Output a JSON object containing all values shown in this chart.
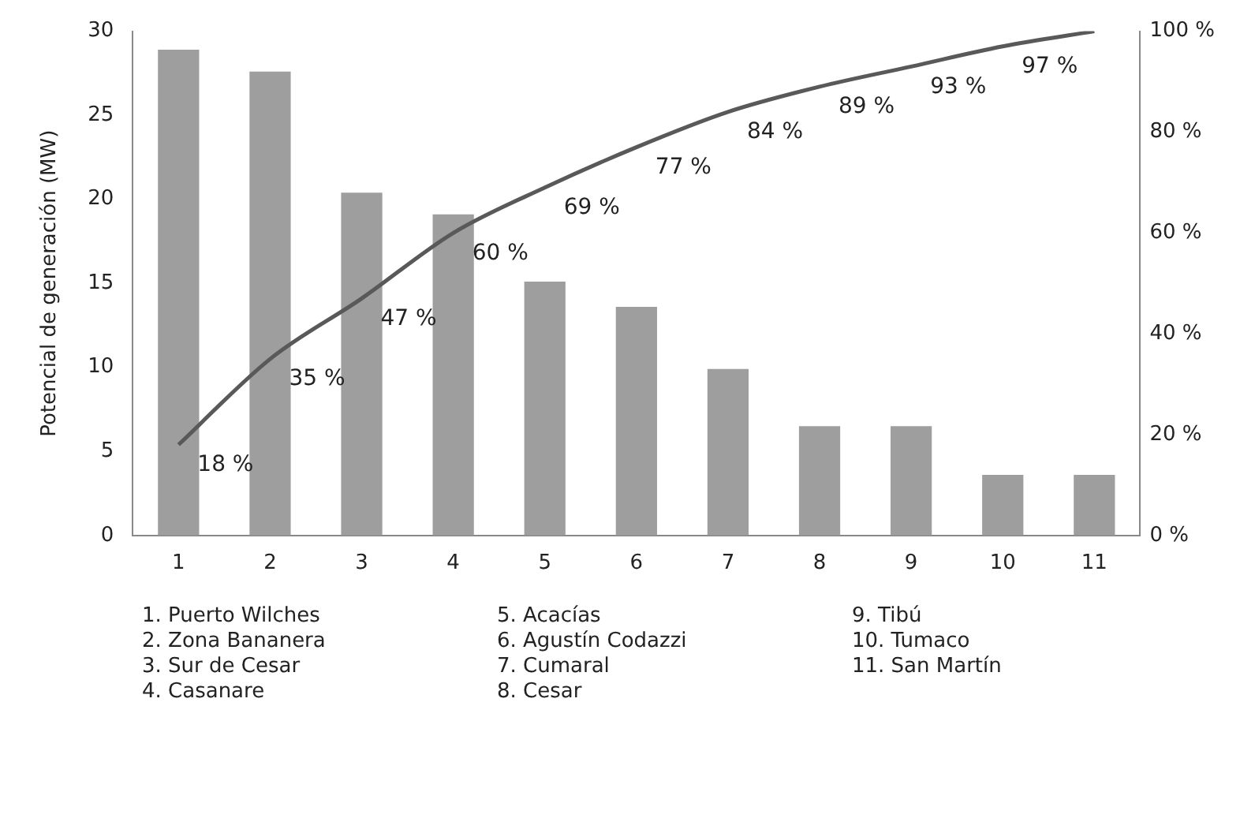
{
  "chart_data": {
    "type": "bar",
    "ylabel": "Potencial de generación (MW)",
    "categories": [
      "1",
      "2",
      "3",
      "4",
      "5",
      "6",
      "7",
      "8",
      "9",
      "10",
      "11"
    ],
    "series": [
      {
        "color": "#9e9e9e",
        "values": [
          28.9,
          27.6,
          20.4,
          19.1,
          15.1,
          13.6,
          9.9,
          6.5,
          6.5,
          3.6,
          3.6
        ]
      },
      {
        "type": "line",
        "axis": "y2",
        "color": "#595959",
        "values": [
          18,
          35,
          47,
          60,
          69,
          77,
          84,
          89,
          93,
          97,
          100
        ],
        "value_labels": [
          "18 %",
          "35 %",
          "47 %",
          "60 %",
          "69 %",
          "77 %",
          "84 %",
          "89 %",
          "93 %",
          "97 %",
          null
        ]
      }
    ],
    "ylim": [
      0,
      30
    ],
    "yticks": [
      0,
      5,
      10,
      15,
      20,
      25,
      30
    ],
    "y2lim": [
      0,
      100
    ],
    "y2ticks": [
      {
        "value": 0,
        "label": "0 %"
      },
      {
        "value": 20,
        "label": "20 %"
      },
      {
        "value": 40,
        "label": "40 %"
      },
      {
        "value": 60,
        "label": "60 %"
      },
      {
        "value": 80,
        "label": "80 %"
      },
      {
        "value": 100,
        "label": "100 %"
      }
    ],
    "grid": false,
    "legend": false,
    "marker": "none",
    "line_style": "solid",
    "annotations": [
      "1. Puerto Wilches",
      "2. Zona Bananera",
      "3. Sur de Cesar",
      "4. Casanare",
      "5. Acacías",
      "6. Agustín Codazzi",
      "7. Cumaral",
      "8. Cesar",
      "9. Tibú",
      "10. Tumaco",
      "11. San Martín"
    ]
  }
}
